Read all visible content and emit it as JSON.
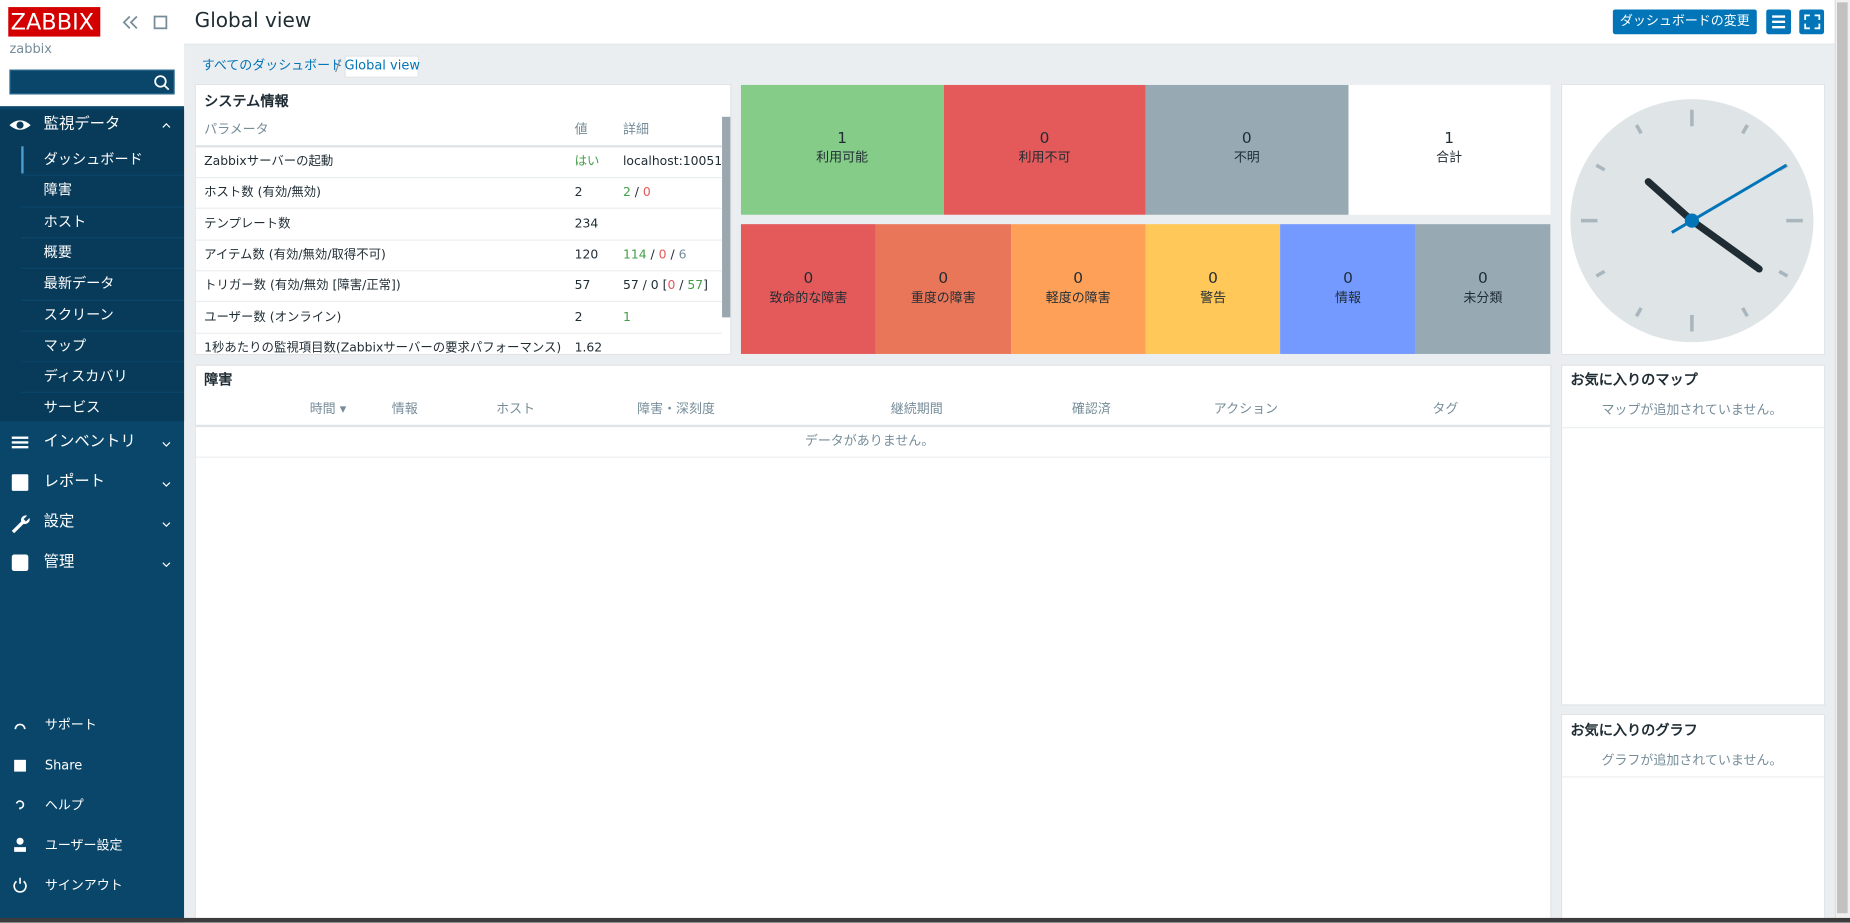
{
  "sidebar": {
    "logo": "ZABBIX",
    "server": "zabbix",
    "menu": [
      {
        "label": "監視データ",
        "items": [
          "ダッシュボード",
          "障害",
          "ホスト",
          "概要",
          "最新データ",
          "スクリーン",
          "マップ",
          "ディスカバリ",
          "サービス"
        ]
      },
      {
        "label": "インベントリ"
      },
      {
        "label": "レポート"
      },
      {
        "label": "設定"
      },
      {
        "label": "管理"
      }
    ],
    "footer": [
      "サポート",
      "Share",
      "ヘルプ",
      "ユーザー設定",
      "サインアウト"
    ]
  },
  "header": {
    "title": "Global view",
    "edit_button": "ダッシュボードの変更"
  },
  "breadcrumb": [
    "すべてのダッシュボード",
    "Global view"
  ],
  "system_info": {
    "title": "システム情報",
    "columns": [
      "パラメータ",
      "値",
      "詳細"
    ],
    "rows": [
      {
        "parameter": "Zabbixサーバーの起動",
        "value": "はい",
        "value_tone": "green",
        "details": [
          {
            "text": "localhost:10051"
          }
        ]
      },
      {
        "parameter": "ホスト数 (有効/無効)",
        "value": 2,
        "details": [
          {
            "text": "2",
            "tone": "green"
          },
          {
            "text": " / "
          },
          {
            "text": "0",
            "tone": "red"
          }
        ]
      },
      {
        "parameter": "テンプレート数",
        "value": 234
      },
      {
        "parameter": "アイテム数 (有効/無効/取得不可)",
        "value": 120,
        "details": [
          {
            "text": "114",
            "tone": "green"
          },
          {
            "text": " / "
          },
          {
            "text": "0",
            "tone": "red"
          },
          {
            "text": " / "
          },
          {
            "text": "6",
            "tone": "gray"
          }
        ]
      },
      {
        "parameter": "トリガー数 (有効/無効 [障害/正常])",
        "value": 57,
        "details": [
          {
            "text": "57 / 0 ["
          },
          {
            "text": "0",
            "tone": "red"
          },
          {
            "text": " / "
          },
          {
            "text": "57",
            "tone": "green"
          },
          {
            "text": "]"
          }
        ]
      },
      {
        "parameter": "ユーザー数 (オンライン)",
        "value": 2,
        "details": [
          {
            "text": "1",
            "tone": "green"
          }
        ]
      },
      {
        "parameter": "1秒あたりの監視項目数(Zabbixサーバーの要求パフォーマンス)",
        "value": 1.62
      }
    ]
  },
  "host_availability": [
    {
      "value": 1,
      "label": "利用可能",
      "color": "#86cc89"
    },
    {
      "value": 0,
      "label": "利用不可",
      "color": "#e45959"
    },
    {
      "value": 0,
      "label": "不明",
      "color": "#97aab3"
    },
    {
      "value": 1,
      "label": "合計",
      "color": "#ffffff"
    }
  ],
  "problem_severity": [
    {
      "value": 0,
      "label": "致命的な障害",
      "color": "#e45959"
    },
    {
      "value": 0,
      "label": "重度の障害",
      "color": "#e97659"
    },
    {
      "value": 0,
      "label": "軽度の障害",
      "color": "#ffa059"
    },
    {
      "value": 0,
      "label": "警告",
      "color": "#ffc859"
    },
    {
      "value": 0,
      "label": "情報",
      "color": "#7499ff"
    },
    {
      "value": 0,
      "label": "未分類",
      "color": "#97aab3"
    }
  ],
  "problems": {
    "title": "障害",
    "columns": [
      "時間 ▾",
      "情報",
      "ホスト",
      "障害・深刻度",
      "継続期間",
      "確認済",
      "アクション",
      "タグ"
    ],
    "empty": "データがありません。"
  },
  "favourite_maps": {
    "title": "お気に入りのマップ",
    "empty": "マップが追加されていません。"
  },
  "favourite_graphs": {
    "title": "お気に入りのグラフ",
    "empty": "グラフが追加されていません。"
  }
}
